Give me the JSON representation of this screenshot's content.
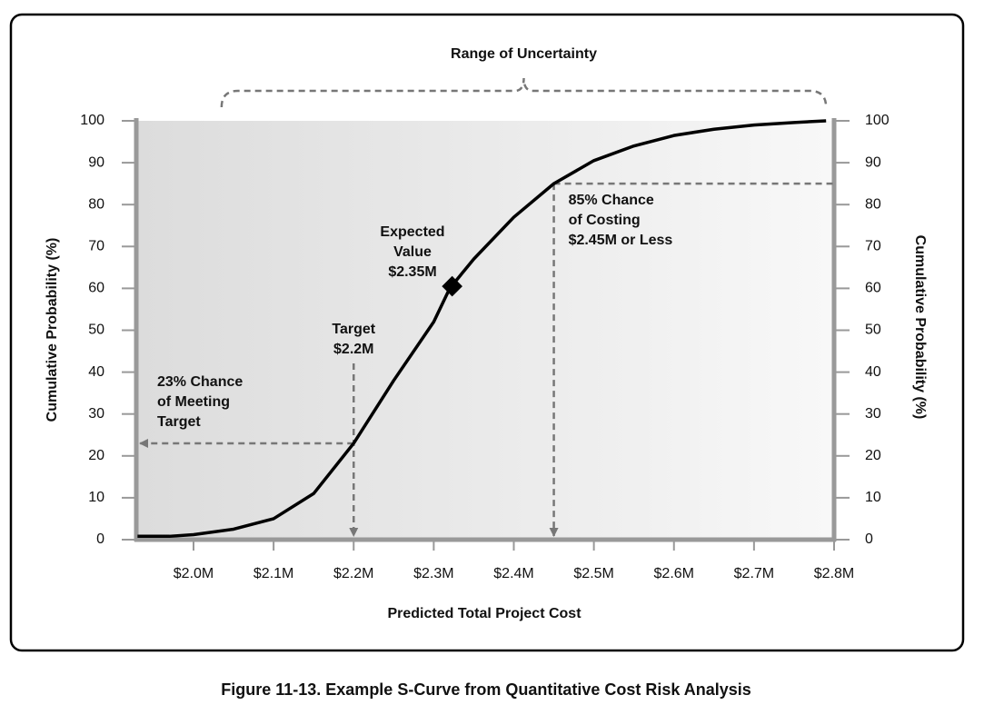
{
  "chart_data": {
    "type": "line",
    "xlabel": "Predicted Total Project Cost",
    "ylabel": "Cumulative Probability (%)",
    "y2label": "Cumulative Probability (%)",
    "caption": "Figure 11-13. Example S-Curve from Quantitative Cost Risk Analysis",
    "color": "#000000",
    "x": [
      1.93,
      1.97,
      2.0,
      2.05,
      2.1,
      2.15,
      2.2,
      2.25,
      2.3,
      2.32,
      2.35,
      2.4,
      2.45,
      2.5,
      2.55,
      2.6,
      2.65,
      2.7,
      2.75,
      2.79
    ],
    "values": [
      0.8,
      0.8,
      1.2,
      2.5,
      5,
      11,
      23,
      38,
      52,
      60,
      67,
      77,
      85,
      90.5,
      94,
      96.5,
      98,
      99,
      99.6,
      100
    ],
    "xlim": [
      1.9285,
      2.8
    ],
    "xticks": [
      {
        "value": 2.0,
        "label": "$2.0M"
      },
      {
        "value": 2.1,
        "label": "$2.1M"
      },
      {
        "value": 2.2,
        "label": "$2.2M"
      },
      {
        "value": 2.3,
        "label": "$2.3M"
      },
      {
        "value": 2.4,
        "label": "$2.4M"
      },
      {
        "value": 2.5,
        "label": "$2.5M"
      },
      {
        "value": 2.6,
        "label": "$2.6M"
      },
      {
        "value": 2.7,
        "label": "$2.7M"
      },
      {
        "value": 2.8,
        "label": "$2.8M"
      }
    ],
    "ylim": [
      0,
      100
    ],
    "yticks": [
      0,
      10,
      20,
      30,
      40,
      50,
      60,
      70,
      80,
      90,
      100
    ],
    "y2lim": [
      0,
      100
    ],
    "y2ticks": [
      0,
      10,
      20,
      30,
      40,
      50,
      60,
      70,
      80,
      90,
      100
    ],
    "range": {
      "text": "Range of Uncertainty",
      "x": [
        2.035,
        2.79
      ]
    },
    "expected": {
      "text": [
        "Expected",
        "Value",
        "$2.35M"
      ],
      "x": 2.323,
      "y": 60.5
    },
    "target": {
      "text": [
        "Target",
        "$2.2M"
      ],
      "chance_text": [
        "23% Chance",
        "of Meeting",
        "Target"
      ],
      "x": 2.2,
      "y": 23
    },
    "percentile": {
      "text": [
        "85% Chance",
        "of Costing",
        "$2.45M or Less"
      ],
      "x": 2.45,
      "y": 85
    }
  }
}
